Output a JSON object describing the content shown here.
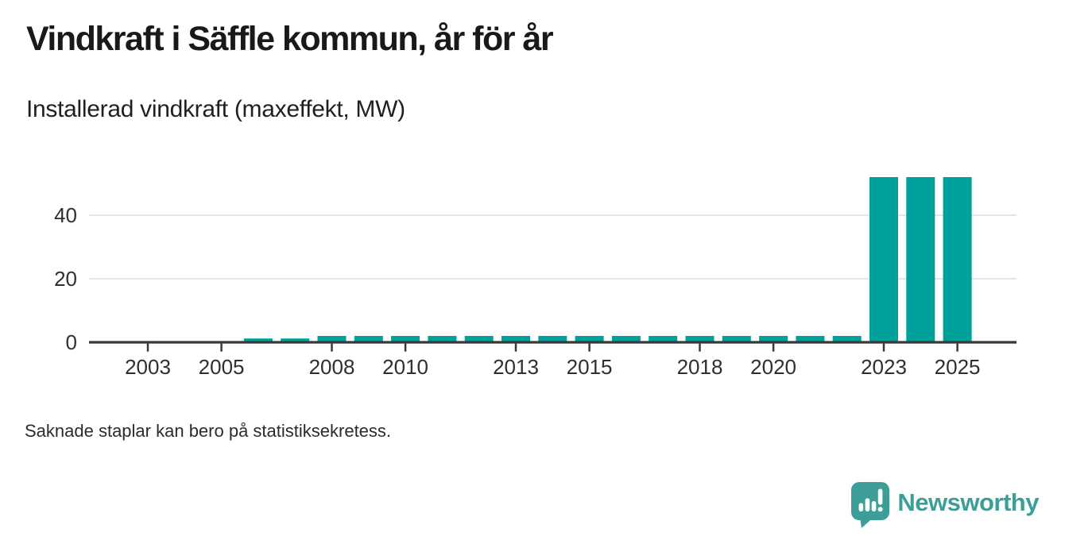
{
  "header": {
    "title": "Vindkraft i Säffle kommun, år för år",
    "subtitle": "Installerad vindkraft (maxeffekt, MW)"
  },
  "footnote": "Saknade staplar kan bero på statistiksekretess.",
  "branding": {
    "name": "Newsworthy",
    "icon": "newsworthy-speech-bubble-chart-icon",
    "color": "#3d9e98"
  },
  "chart_data": {
    "type": "bar",
    "title": "Vindkraft i Säffle kommun, år för år",
    "subtitle": "Installerad vindkraft (maxeffekt, MW)",
    "xlabel": "",
    "ylabel": "Installerad vindkraft (maxeffekt, MW)",
    "categories": [
      2002,
      2003,
      2004,
      2005,
      2006,
      2007,
      2008,
      2009,
      2010,
      2011,
      2012,
      2013,
      2014,
      2015,
      2016,
      2017,
      2018,
      2019,
      2020,
      2021,
      2022,
      2023,
      2024,
      2025
    ],
    "values": [
      null,
      null,
      null,
      null,
      1.2,
      1.2,
      2,
      2,
      2,
      2,
      2,
      2,
      2,
      2,
      2,
      2,
      2,
      2,
      2,
      2,
      2,
      52,
      52,
      52
    ],
    "x_tick_labels": [
      "2003",
      "2005",
      "2008",
      "2010",
      "2013",
      "2015",
      "2018",
      "2020",
      "2023",
      "2025"
    ],
    "y_ticks": [
      0,
      20,
      40
    ],
    "ylim": [
      0,
      57.5
    ],
    "grid": "horizontal",
    "legend": "none",
    "bar_color": "#00a19a",
    "axis_color": "#383838",
    "grid_color": "#e4e4e4",
    "missing_data_note": "Saknade staplar kan bero på statistiksekretess."
  }
}
